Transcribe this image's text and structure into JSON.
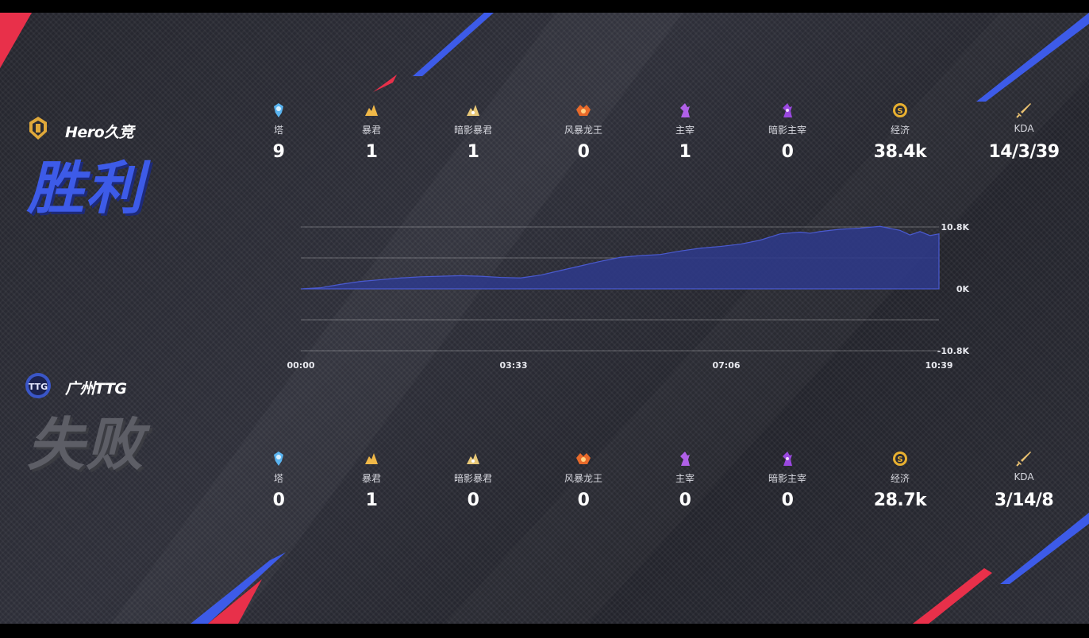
{
  "teams": {
    "top": {
      "name": "Hero久竞",
      "result": "胜利",
      "logo_color": "#e0a93a",
      "stats": [
        {
          "icon": "tower-icon",
          "label": "塔",
          "value": "9"
        },
        {
          "icon": "tyrant-icon",
          "label": "暴君",
          "value": "1"
        },
        {
          "icon": "shadow-tyrant-icon",
          "label": "暗影暴君",
          "value": "1"
        },
        {
          "icon": "storm-dragon-icon",
          "label": "风暴龙王",
          "value": "0"
        },
        {
          "icon": "overlord-icon",
          "label": "主宰",
          "value": "1"
        },
        {
          "icon": "shadow-overlord-icon",
          "label": "暗影主宰",
          "value": "0"
        },
        {
          "icon": "gold-icon",
          "label": "经济",
          "value": "38.4k"
        },
        {
          "icon": "sword-icon",
          "label": "KDA",
          "value": "14/3/39"
        }
      ]
    },
    "bottom": {
      "name": "广州TTG",
      "result": "失败",
      "logo_color": "#3a56c8",
      "stats": [
        {
          "icon": "tower-icon",
          "label": "塔",
          "value": "0"
        },
        {
          "icon": "tyrant-icon",
          "label": "暴君",
          "value": "1"
        },
        {
          "icon": "shadow-tyrant-icon",
          "label": "暗影暴君",
          "value": "0"
        },
        {
          "icon": "storm-dragon-icon",
          "label": "风暴龙王",
          "value": "0"
        },
        {
          "icon": "overlord-icon",
          "label": "主宰",
          "value": "0"
        },
        {
          "icon": "shadow-overlord-icon",
          "label": "暗影主宰",
          "value": "0"
        },
        {
          "icon": "gold-icon",
          "label": "经济",
          "value": "28.7k"
        },
        {
          "icon": "sword-icon",
          "label": "KDA",
          "value": "3/14/8"
        }
      ]
    }
  },
  "colors": {
    "accent_blue": "#3d5be8",
    "accent_red": "#e8304a",
    "area_fill": "#2e3a8c",
    "area_stroke": "#4a5ad0",
    "tower": "#5ab4f0",
    "tyrant": "#f0b848",
    "storm": "#e86a2a",
    "overlord": "#b060e8",
    "gold": "#e8b030"
  },
  "chart_data": {
    "type": "area",
    "x_ticks": [
      "00:00",
      "03:33",
      "07:06",
      "10:39"
    ],
    "y_ticks": [
      "10.8K",
      "0K",
      "-10.8K"
    ],
    "xlim": [
      0,
      639
    ],
    "ylim": [
      -10.8,
      10.8
    ],
    "series": [
      {
        "x": [
          0,
          20,
          40,
          60,
          80,
          100,
          120,
          140,
          160,
          180,
          200,
          220,
          240,
          260,
          280,
          300,
          320,
          340,
          360,
          380,
          400,
          420,
          440,
          460,
          480,
          500,
          510,
          520,
          540,
          560,
          580,
          600,
          610,
          620,
          630,
          639
        ],
        "values": [
          0,
          0.2,
          0.8,
          1.3,
          1.6,
          1.9,
          2.1,
          2.2,
          2.3,
          2.2,
          2.0,
          1.9,
          2.4,
          3.2,
          4.0,
          4.8,
          5.5,
          5.8,
          6.0,
          6.6,
          7.1,
          7.4,
          7.8,
          8.5,
          9.6,
          9.9,
          9.7,
          10.0,
          10.4,
          10.6,
          10.9,
          10.2,
          9.4,
          10.0,
          9.3,
          9.6
        ]
      }
    ]
  }
}
